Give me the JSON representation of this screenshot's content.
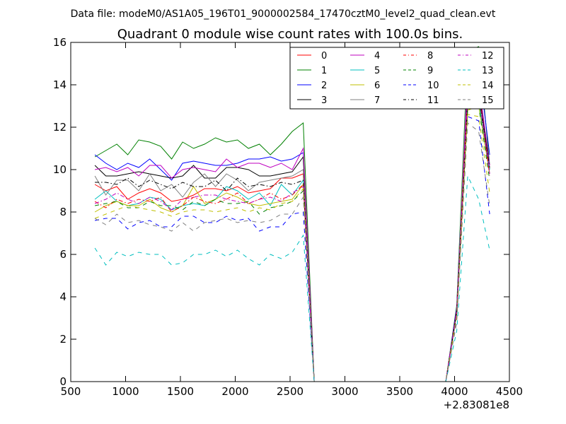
{
  "header": {
    "data_file": "Data file: modeM0/AS1A05_196T01_9000002584_17470cztM0_level2_quad_clean.evt"
  },
  "chart_data": {
    "type": "line",
    "title": "Quadrant 0 module wise count rates with 100.0s bins.",
    "xlabel": "",
    "ylabel": "",
    "x_offset_label": "+2.83081e8",
    "xlim": [
      500,
      4500
    ],
    "ylim": [
      0,
      16
    ],
    "x_ticks": [
      "500",
      "1000",
      "1500",
      "2000",
      "2500",
      "3000",
      "3500",
      "4000",
      "4500"
    ],
    "y_ticks": [
      "0",
      "2",
      "4",
      "6",
      "8",
      "10",
      "12",
      "14",
      "16"
    ],
    "grid": false,
    "legend_position": "top-right",
    "legend_columns": 4,
    "x": [
      720,
      820,
      920,
      1020,
      1120,
      1220,
      1320,
      1420,
      1520,
      1620,
      1720,
      1820,
      1920,
      2020,
      2120,
      2220,
      2320,
      2420,
      2520,
      2620,
      2720,
      2820,
      2920,
      3020,
      3120,
      3220,
      3320,
      3420,
      3520,
      3620,
      3720,
      3820,
      3920,
      4020,
      4120,
      4220,
      4320
    ],
    "series": [
      {
        "name": "0",
        "color": "#ff0000",
        "dash": "solid",
        "values": [
          9.3,
          9.0,
          9.2,
          8.6,
          8.9,
          9.1,
          8.9,
          8.5,
          8.6,
          8.8,
          9.1,
          9.1,
          9.0,
          9.2,
          8.9,
          9.0,
          9.1,
          9.6,
          9.6,
          9.8,
          0,
          0,
          0,
          0,
          0,
          0,
          0,
          0,
          0,
          0,
          0,
          0,
          0,
          3.3,
          13.2,
          13.3,
          10.0
        ]
      },
      {
        "name": "1",
        "color": "#008000",
        "dash": "solid",
        "values": [
          10.6,
          10.9,
          11.2,
          10.7,
          11.4,
          11.3,
          11.1,
          10.5,
          11.3,
          11.0,
          11.2,
          11.5,
          11.3,
          11.4,
          11.0,
          11.2,
          10.7,
          11.2,
          11.8,
          12.2,
          0,
          0,
          0,
          0,
          0,
          0,
          0,
          0,
          0,
          0,
          0,
          0,
          0,
          3.6,
          15.6,
          15.8,
          10.2
        ]
      },
      {
        "name": "2",
        "color": "#0000ff",
        "dash": "solid",
        "values": [
          10.7,
          10.3,
          10.0,
          10.3,
          10.1,
          10.5,
          10.0,
          9.5,
          10.3,
          10.4,
          10.3,
          10.2,
          10.2,
          10.3,
          10.5,
          10.5,
          10.6,
          10.4,
          10.5,
          10.8,
          0,
          0,
          0,
          0,
          0,
          0,
          0,
          0,
          0,
          0,
          0,
          0,
          0,
          3.5,
          14.8,
          14.9,
          10.7
        ]
      },
      {
        "name": "3",
        "color": "#000000",
        "dash": "solid",
        "values": [
          10.2,
          9.7,
          9.7,
          9.8,
          9.9,
          9.8,
          9.7,
          9.6,
          9.7,
          10.2,
          9.6,
          9.6,
          10.1,
          10.1,
          10.0,
          9.7,
          9.7,
          9.8,
          9.9,
          10.6,
          0,
          0,
          0,
          0,
          0,
          0,
          0,
          0,
          0,
          0,
          0,
          0,
          0,
          3.4,
          13.6,
          13.9,
          10.0
        ]
      },
      {
        "name": "4",
        "color": "#bf00bf",
        "dash": "solid",
        "values": [
          10.0,
          10.1,
          9.9,
          10.1,
          9.7,
          10.2,
          10.2,
          9.6,
          10.0,
          10.1,
          10.0,
          9.9,
          10.5,
          10.1,
          10.3,
          10.3,
          10.1,
          10.3,
          10.0,
          11.0,
          0,
          0,
          0,
          0,
          0,
          0,
          0,
          0,
          0,
          0,
          0,
          0,
          0,
          3.4,
          14.2,
          14.1,
          10.2
        ]
      },
      {
        "name": "5",
        "color": "#00bfbf",
        "dash": "solid",
        "values": [
          8.6,
          9.0,
          8.5,
          8.3,
          8.4,
          8.7,
          8.6,
          8.1,
          8.3,
          8.4,
          8.3,
          8.6,
          9.2,
          9.0,
          8.6,
          8.9,
          8.3,
          9.3,
          8.8,
          9.5,
          0,
          0,
          0,
          0,
          0,
          0,
          0,
          0,
          0,
          0,
          0,
          0,
          0,
          3.2,
          13.0,
          13.2,
          10.0
        ]
      },
      {
        "name": "6",
        "color": "#bfbf00",
        "dash": "solid",
        "values": [
          8.0,
          8.3,
          8.5,
          8.3,
          8.3,
          8.6,
          8.2,
          8.0,
          8.3,
          9.2,
          8.4,
          8.6,
          8.9,
          8.7,
          8.4,
          8.3,
          8.4,
          8.5,
          8.6,
          9.3,
          0,
          0,
          0,
          0,
          0,
          0,
          0,
          0,
          0,
          0,
          0,
          0,
          0,
          3.2,
          12.8,
          13.0,
          9.8
        ]
      },
      {
        "name": "7",
        "color": "#808080",
        "dash": "solid",
        "values": [
          9.7,
          8.8,
          9.5,
          9.5,
          9.0,
          9.8,
          9.0,
          9.3,
          8.7,
          9.4,
          9.8,
          9.2,
          9.8,
          9.5,
          9.0,
          9.4,
          9.5,
          9.6,
          9.7,
          10.0,
          0,
          0,
          0,
          0,
          0,
          0,
          0,
          0,
          0,
          0,
          0,
          0,
          0,
          3.3,
          15.2,
          13.5,
          9.8
        ]
      },
      {
        "name": "8",
        "color": "#ff0000",
        "dash": "dashdot",
        "values": [
          8.5,
          8.2,
          8.6,
          8.4,
          8.6,
          8.5,
          8.7,
          8.0,
          8.3,
          8.7,
          8.5,
          8.4,
          8.6,
          8.9,
          8.4,
          8.6,
          8.9,
          8.6,
          8.8,
          9.3,
          0,
          0,
          0,
          0,
          0,
          0,
          0,
          0,
          0,
          0,
          0,
          0,
          0,
          3.3,
          13.7,
          13.8,
          9.7
        ]
      },
      {
        "name": "9",
        "color": "#008000",
        "dash": "dashed",
        "values": [
          8.3,
          8.4,
          8.5,
          8.2,
          8.2,
          8.5,
          8.3,
          8.3,
          8.1,
          8.5,
          8.3,
          8.6,
          8.4,
          8.4,
          8.5,
          7.9,
          8.2,
          8.3,
          8.5,
          9.0,
          0,
          0,
          0,
          0,
          0,
          0,
          0,
          0,
          0,
          0,
          0,
          0,
          0,
          3.2,
          12.9,
          13.0,
          9.5
        ]
      },
      {
        "name": "10",
        "color": "#0000ff",
        "dash": "dashed",
        "values": [
          7.6,
          7.7,
          7.7,
          7.2,
          7.5,
          7.6,
          7.3,
          7.3,
          7.8,
          7.8,
          7.5,
          7.5,
          7.8,
          7.6,
          7.7,
          7.1,
          7.3,
          7.3,
          7.9,
          8.0,
          0,
          0,
          0,
          0,
          0,
          0,
          0,
          0,
          0,
          0,
          0,
          0,
          0,
          3.0,
          12.5,
          12.3,
          7.9
        ]
      },
      {
        "name": "11",
        "color": "#000000",
        "dash": "dashdot",
        "values": [
          9.4,
          9.4,
          9.3,
          9.6,
          9.2,
          9.5,
          9.3,
          9.1,
          9.4,
          9.2,
          9.2,
          9.5,
          9.0,
          9.6,
          9.2,
          9.3,
          9.2,
          9.4,
          9.3,
          9.5,
          0,
          0,
          0,
          0,
          0,
          0,
          0,
          0,
          0,
          0,
          0,
          0,
          0,
          3.3,
          13.3,
          13.5,
          10.1
        ]
      },
      {
        "name": "12",
        "color": "#bf00bf",
        "dash": "dashdot",
        "values": [
          8.4,
          8.6,
          8.9,
          8.6,
          8.4,
          8.7,
          8.5,
          8.1,
          8.6,
          8.7,
          8.8,
          8.8,
          8.6,
          8.5,
          8.4,
          8.6,
          8.7,
          8.5,
          8.9,
          9.2,
          0,
          0,
          0,
          0,
          0,
          0,
          0,
          0,
          0,
          0,
          0,
          0,
          0,
          3.3,
          13.5,
          13.6,
          9.8
        ]
      },
      {
        "name": "13",
        "color": "#00bfbf",
        "dash": "dashed",
        "values": [
          6.3,
          5.5,
          6.1,
          5.9,
          6.1,
          6.0,
          6.0,
          5.5,
          5.6,
          6.0,
          6.0,
          6.2,
          5.9,
          6.2,
          5.8,
          5.5,
          6.0,
          5.8,
          6.1,
          6.9,
          0,
          0,
          0,
          0,
          0,
          0,
          0,
          0,
          0,
          0,
          0,
          0,
          0,
          2.4,
          9.7,
          8.6,
          6.2
        ]
      },
      {
        "name": "14",
        "color": "#bfbf00",
        "dash": "dashed",
        "values": [
          7.7,
          7.9,
          8.1,
          8.3,
          8.2,
          8.1,
          8.0,
          7.8,
          8.0,
          8.1,
          8.1,
          8.0,
          8.1,
          8.2,
          8.0,
          8.2,
          8.1,
          8.4,
          8.5,
          9.1,
          0,
          0,
          0,
          0,
          0,
          0,
          0,
          0,
          0,
          0,
          0,
          0,
          0,
          3.1,
          12.6,
          12.5,
          8.9
        ]
      },
      {
        "name": "15",
        "color": "#808080",
        "dash": "dashed",
        "values": [
          7.7,
          7.4,
          7.9,
          7.5,
          7.6,
          7.4,
          7.3,
          7.1,
          7.5,
          7.1,
          7.5,
          7.6,
          7.7,
          7.5,
          7.6,
          7.5,
          7.6,
          7.9,
          7.9,
          8.7,
          0,
          0,
          0,
          0,
          0,
          0,
          0,
          0,
          0,
          0,
          0,
          0,
          0,
          2.8,
          12.2,
          11.8,
          8.3
        ]
      }
    ]
  }
}
